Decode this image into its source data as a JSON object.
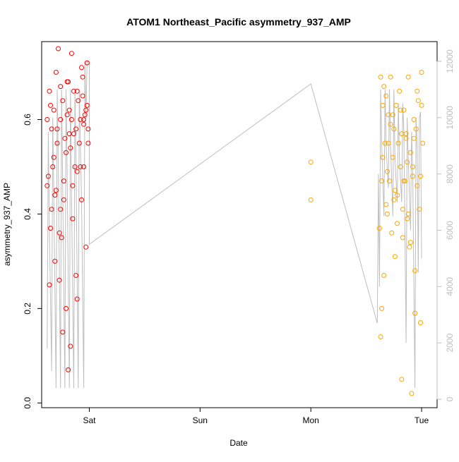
{
  "chart_data": {
    "type": "scatter",
    "title": "ATOM1 Northeast_Pacific asymmetry_937_AMP",
    "xlabel": "Date",
    "ylabel": "asymmetry_937_AMP",
    "x_ticks": [
      "Sat",
      "Sun",
      "Mon",
      "Tue"
    ],
    "x_tick_values": [
      1,
      2,
      3,
      4
    ],
    "xlim": [
      0.57,
      4.14
    ],
    "ylim": [
      -0.01,
      0.765
    ],
    "y_ticks": [
      0.0,
      0.2,
      0.4,
      0.6
    ],
    "y2_ticks": [
      0,
      2000,
      4000,
      6000,
      8000,
      10000,
      12000
    ],
    "y2lim": [
      -300,
      12700
    ],
    "grid": false,
    "legend": "none",
    "colors": {
      "series_a": "#ff0000",
      "series_b": "#ffa500",
      "line": "#bebebe",
      "right_axis": "#bebebe"
    },
    "series": [
      {
        "values_x": [
          0.62,
          0.63,
          0.64,
          0.65,
          0.66,
          0.67,
          0.68,
          0.69,
          0.7,
          0.71,
          0.72,
          0.73,
          0.74,
          0.75,
          0.76,
          0.77,
          0.78,
          0.79,
          0.8,
          0.81,
          0.82,
          0.83,
          0.84,
          0.85,
          0.86,
          0.87,
          0.88,
          0.89,
          0.9,
          0.91,
          0.92,
          0.93,
          0.94,
          0.95,
          0.96,
          0.97,
          0.98,
          0.99,
          0.62,
          0.65,
          0.68,
          0.71,
          0.74,
          0.77,
          0.8,
          0.83,
          0.86,
          0.89,
          0.92,
          0.95,
          0.98,
          0.64,
          0.69,
          0.74,
          0.79,
          0.84,
          0.89,
          0.94,
          0.99,
          0.66,
          0.73,
          0.81,
          0.88,
          0.95,
          0.76,
          0.85,
          0.93,
          0.97,
          0.7,
          0.82
        ],
        "values_y": [
          0.6,
          0.48,
          0.66,
          0.37,
          0.58,
          0.5,
          0.62,
          0.44,
          0.7,
          0.55,
          0.75,
          0.26,
          0.6,
          0.35,
          0.64,
          0.47,
          0.56,
          0.2,
          0.68,
          0.07,
          0.62,
          0.12,
          0.6,
          0.39,
          0.66,
          0.5,
          0.58,
          0.22,
          0.64,
          0.55,
          0.6,
          0.43,
          0.69,
          0.5,
          0.61,
          0.33,
          0.72,
          0.55,
          0.46,
          0.63,
          0.52,
          0.58,
          0.67,
          0.43,
          0.61,
          0.54,
          0.57,
          0.66,
          0.5,
          0.59,
          0.63,
          0.25,
          0.3,
          0.41,
          0.53,
          0.74,
          0.49,
          0.65,
          0.58,
          0.41,
          0.36,
          0.68,
          0.27,
          0.6,
          0.15,
          0.46,
          0.71,
          0.62,
          0.45,
          0.57
        ]
      },
      {
        "values_x": [
          3.0,
          3.0,
          3.62,
          3.63,
          3.64,
          3.65,
          3.66,
          3.67,
          3.68,
          3.69,
          3.7,
          3.71,
          3.72,
          3.73,
          3.74,
          3.75,
          3.76,
          3.77,
          3.78,
          3.79,
          3.8,
          3.81,
          3.82,
          3.83,
          3.84,
          3.85,
          3.86,
          3.87,
          3.88,
          3.89,
          3.9,
          3.91,
          3.92,
          3.93,
          3.94,
          3.95,
          3.96,
          3.97,
          3.98,
          3.99,
          4.0,
          4.01,
          3.63,
          3.66,
          3.69,
          3.72,
          3.75,
          3.78,
          3.81,
          3.84,
          3.87,
          3.9,
          3.93,
          3.96,
          3.99,
          3.64,
          3.7,
          3.76,
          3.82,
          3.88,
          3.94,
          4.0,
          3.65,
          3.74,
          3.83,
          3.92,
          3.68,
          3.86
        ],
        "values_y": [
          0.51,
          0.43,
          0.37,
          0.69,
          0.47,
          0.63,
          0.27,
          0.55,
          0.65,
          0.4,
          0.61,
          0.47,
          0.69,
          0.36,
          0.52,
          0.58,
          0.31,
          0.63,
          0.44,
          0.55,
          0.66,
          0.5,
          0.05,
          0.41,
          0.62,
          0.47,
          0.56,
          0.39,
          0.69,
          0.33,
          0.53,
          0.02,
          0.48,
          0.6,
          0.28,
          0.58,
          0.46,
          0.64,
          0.41,
          0.17,
          0.7,
          0.55,
          0.14,
          0.67,
          0.49,
          0.59,
          0.43,
          0.38,
          0.62,
          0.47,
          0.51,
          0.34,
          0.56,
          0.66,
          0.48,
          0.2,
          0.55,
          0.45,
          0.57,
          0.4,
          0.19,
          0.63,
          0.52,
          0.61,
          0.35,
          0.5,
          0.42,
          0.57
        ]
      }
    ],
    "line_series": {
      "x": [
        0.62,
        0.63,
        0.64,
        0.66,
        0.67,
        0.68,
        0.7,
        0.71,
        0.72,
        0.74,
        0.75,
        0.76,
        0.78,
        0.79,
        0.8,
        0.82,
        0.83,
        0.84,
        0.86,
        0.87,
        0.88,
        0.9,
        0.91,
        0.92,
        0.93,
        0.95,
        0.96,
        0.97,
        0.98,
        0.99,
        1.0,
        1.0,
        3.0,
        3.6,
        3.61,
        3.62,
        3.63,
        3.64,
        3.66,
        3.67,
        3.68,
        3.7,
        3.71,
        3.72,
        3.74,
        3.75,
        3.76,
        3.78,
        3.79,
        3.8,
        3.82,
        3.83,
        3.84,
        3.86,
        3.87,
        3.88,
        3.9,
        3.91,
        3.92,
        3.94,
        3.95,
        3.96,
        3.97,
        3.98,
        3.99,
        4.0
      ],
      "y": [
        1800,
        9500,
        6000,
        1000,
        10000,
        7000,
        400,
        11000,
        8500,
        400,
        11000,
        7500,
        400,
        11000,
        8000,
        400,
        11000,
        7000,
        400,
        11000,
        8500,
        400,
        11000,
        9000,
        7000,
        400,
        12000,
        10000,
        12000,
        12000,
        12000,
        5500,
        11200,
        2700,
        8000,
        4000,
        11000,
        9000,
        6500,
        11000,
        9000,
        7500,
        11000,
        9000,
        6500,
        11000,
        8500,
        7000,
        10500,
        8500,
        7000,
        10500,
        9500,
        2000,
        10000,
        8500,
        6000,
        9500,
        8000,
        400,
        10000,
        9000,
        4500,
        10000,
        10200,
        5000
      ]
    }
  }
}
